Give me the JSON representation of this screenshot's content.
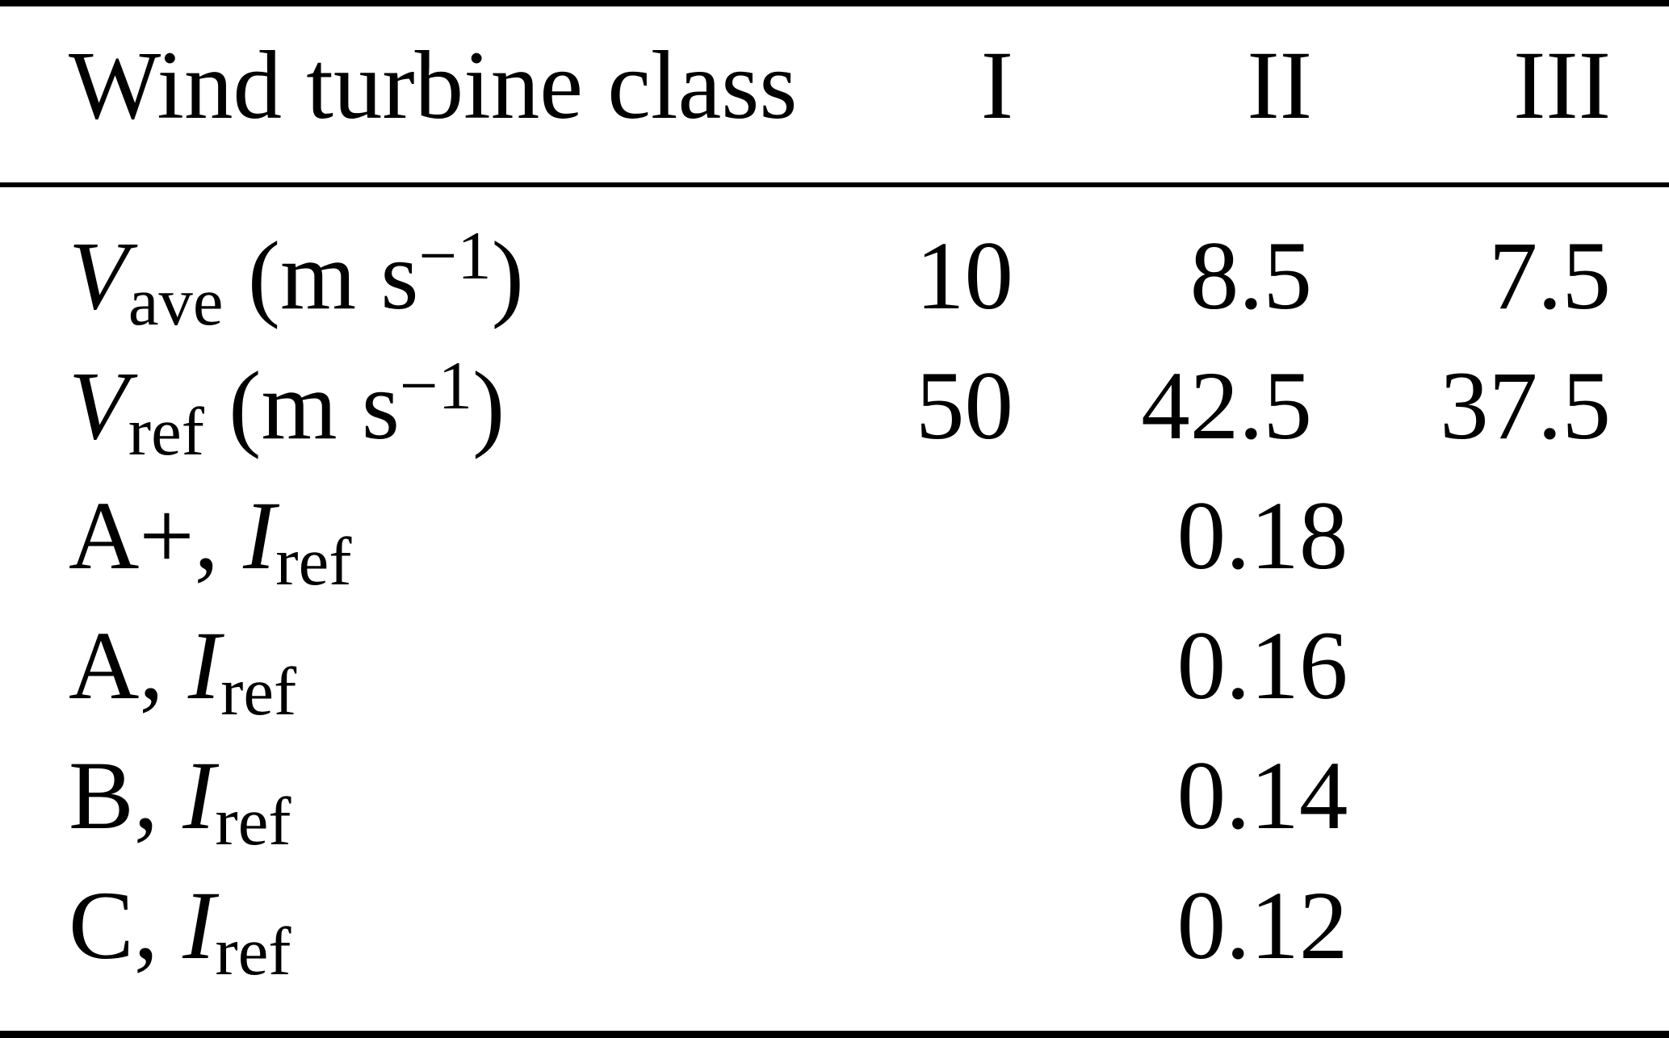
{
  "meta": {
    "background_color": "#ffffff",
    "text_color": "#000000",
    "rule_color": "#000000"
  },
  "table": {
    "header": {
      "label": "Wind turbine class",
      "columns": [
        "I",
        "II",
        "III"
      ]
    },
    "rows": [
      {
        "prefix": "",
        "symbol": "V",
        "sub": "ave",
        "unit_open": " (m s",
        "unit_sup": "−1",
        "unit_close": ")",
        "values": [
          "10",
          "8.5",
          "7.5"
        ]
      },
      {
        "prefix": "",
        "symbol": "V",
        "sub": "ref",
        "unit_open": " (m s",
        "unit_sup": "−1",
        "unit_close": ")",
        "values": [
          "50",
          "42.5",
          "37.5"
        ]
      },
      {
        "prefix": "A+, ",
        "symbol": "I",
        "sub": "ref",
        "unit_open": "",
        "unit_sup": "",
        "unit_close": "",
        "span_value": "0.18"
      },
      {
        "prefix": "A, ",
        "symbol": "I",
        "sub": "ref",
        "unit_open": "",
        "unit_sup": "",
        "unit_close": "",
        "span_value": "0.16"
      },
      {
        "prefix": "B, ",
        "symbol": "I",
        "sub": "ref",
        "unit_open": "",
        "unit_sup": "",
        "unit_close": "",
        "span_value": "0.14"
      },
      {
        "prefix": "C, ",
        "symbol": "I",
        "sub": "ref",
        "unit_open": "",
        "unit_sup": "",
        "unit_close": "",
        "span_value": "0.12"
      }
    ]
  },
  "chart_data": {
    "type": "table",
    "columns": [
      "Wind turbine class",
      "I",
      "II",
      "III"
    ],
    "rows": [
      {
        "label": "V_ave (m s^-1)",
        "I": 10,
        "II": 8.5,
        "III": 7.5
      },
      {
        "label": "V_ref (m s^-1)",
        "I": 50,
        "II": 42.5,
        "III": 37.5
      },
      {
        "label": "A+, I_ref",
        "all_classes": 0.18
      },
      {
        "label": "A, I_ref",
        "all_classes": 0.16
      },
      {
        "label": "B, I_ref",
        "all_classes": 0.14
      },
      {
        "label": "C, I_ref",
        "all_classes": 0.12
      }
    ]
  }
}
